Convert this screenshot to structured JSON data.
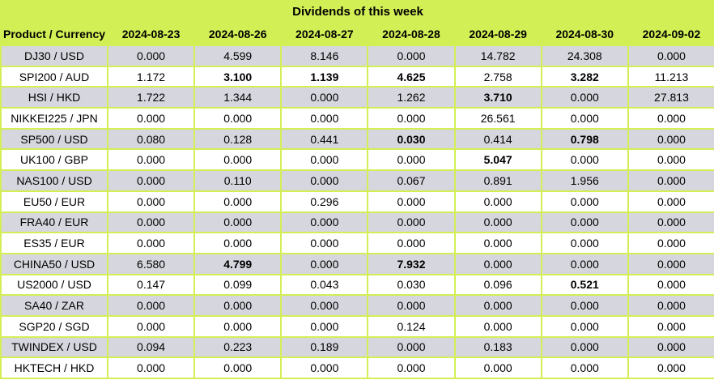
{
  "title": "Dividends of this week",
  "colors": {
    "green": "#d2ef55",
    "alt_row": "#d6d6de",
    "white_row": "#ffffff",
    "text": "#000000"
  },
  "table": {
    "product_header": "Product / Currency",
    "date_headers": [
      "2024-08-23",
      "2024-08-26",
      "2024-08-27",
      "2024-08-28",
      "2024-08-29",
      "2024-08-30",
      "2024-09-02"
    ],
    "rows": [
      {
        "product": "DJ30 / USD",
        "values": [
          "0.000",
          "4.599",
          "8.146",
          "0.000",
          "14.782",
          "24.308",
          "0.000"
        ],
        "bold": [
          false,
          false,
          false,
          false,
          false,
          false,
          false
        ]
      },
      {
        "product": "SPI200 / AUD",
        "values": [
          "1.172",
          "3.100",
          "1.139",
          "4.625",
          "2.758",
          "3.282",
          "11.213"
        ],
        "bold": [
          false,
          true,
          true,
          true,
          false,
          true,
          false
        ]
      },
      {
        "product": "HSI / HKD",
        "values": [
          "1.722",
          "1.344",
          "0.000",
          "1.262",
          "3.710",
          "0.000",
          "27.813"
        ],
        "bold": [
          false,
          false,
          false,
          false,
          true,
          false,
          false
        ]
      },
      {
        "product": "NIKKEI225 / JPN",
        "values": [
          "0.000",
          "0.000",
          "0.000",
          "0.000",
          "26.561",
          "0.000",
          "0.000"
        ],
        "bold": [
          false,
          false,
          false,
          false,
          false,
          false,
          false
        ]
      },
      {
        "product": "SP500 / USD",
        "values": [
          "0.080",
          "0.128",
          "0.441",
          "0.030",
          "0.414",
          "0.798",
          "0.000"
        ],
        "bold": [
          false,
          false,
          false,
          true,
          false,
          true,
          false
        ]
      },
      {
        "product": "UK100 / GBP",
        "values": [
          "0.000",
          "0.000",
          "0.000",
          "0.000",
          "5.047",
          "0.000",
          "0.000"
        ],
        "bold": [
          false,
          false,
          false,
          false,
          true,
          false,
          false
        ]
      },
      {
        "product": "NAS100 / USD",
        "values": [
          "0.000",
          "0.110",
          "0.000",
          "0.067",
          "0.891",
          "1.956",
          "0.000"
        ],
        "bold": [
          false,
          false,
          false,
          false,
          false,
          false,
          false
        ]
      },
      {
        "product": "EU50 / EUR",
        "values": [
          "0.000",
          "0.000",
          "0.296",
          "0.000",
          "0.000",
          "0.000",
          "0.000"
        ],
        "bold": [
          false,
          false,
          false,
          false,
          false,
          false,
          false
        ]
      },
      {
        "product": "FRA40 / EUR",
        "values": [
          "0.000",
          "0.000",
          "0.000",
          "0.000",
          "0.000",
          "0.000",
          "0.000"
        ],
        "bold": [
          false,
          false,
          false,
          false,
          false,
          false,
          false
        ]
      },
      {
        "product": "ES35 / EUR",
        "values": [
          "0.000",
          "0.000",
          "0.000",
          "0.000",
          "0.000",
          "0.000",
          "0.000"
        ],
        "bold": [
          false,
          false,
          false,
          false,
          false,
          false,
          false
        ]
      },
      {
        "product": "CHINA50 / USD",
        "values": [
          "6.580",
          "4.799",
          "0.000",
          "7.932",
          "0.000",
          "0.000",
          "0.000"
        ],
        "bold": [
          false,
          true,
          false,
          true,
          false,
          false,
          false
        ]
      },
      {
        "product": "US2000 / USD",
        "values": [
          "0.147",
          "0.099",
          "0.043",
          "0.030",
          "0.096",
          "0.521",
          "0.000"
        ],
        "bold": [
          false,
          false,
          false,
          false,
          false,
          true,
          false
        ]
      },
      {
        "product": "SA40 / ZAR",
        "values": [
          "0.000",
          "0.000",
          "0.000",
          "0.000",
          "0.000",
          "0.000",
          "0.000"
        ],
        "bold": [
          false,
          false,
          false,
          false,
          false,
          false,
          false
        ]
      },
      {
        "product": "SGP20 / SGD",
        "values": [
          "0.000",
          "0.000",
          "0.000",
          "0.124",
          "0.000",
          "0.000",
          "0.000"
        ],
        "bold": [
          false,
          false,
          false,
          false,
          false,
          false,
          false
        ]
      },
      {
        "product": "TWINDEX / USD",
        "values": [
          "0.094",
          "0.223",
          "0.189",
          "0.000",
          "0.183",
          "0.000",
          "0.000"
        ],
        "bold": [
          false,
          false,
          false,
          false,
          false,
          false,
          false
        ]
      },
      {
        "product": "HKTECH / HKD",
        "values": [
          "0.000",
          "0.000",
          "0.000",
          "0.000",
          "0.000",
          "0.000",
          "0.000"
        ],
        "bold": [
          false,
          false,
          false,
          false,
          false,
          false,
          false
        ]
      }
    ]
  },
  "chart_data": {
    "type": "table",
    "title": "Dividends of this week",
    "columns": [
      "Product / Currency",
      "2024-08-23",
      "2024-08-26",
      "2024-08-27",
      "2024-08-28",
      "2024-08-29",
      "2024-08-30",
      "2024-09-02"
    ],
    "rows": [
      [
        "DJ30 / USD",
        0.0,
        4.599,
        8.146,
        0.0,
        14.782,
        24.308,
        0.0
      ],
      [
        "SPI200 / AUD",
        1.172,
        3.1,
        1.139,
        4.625,
        2.758,
        3.282,
        11.213
      ],
      [
        "HSI / HKD",
        1.722,
        1.344,
        0.0,
        1.262,
        3.71,
        0.0,
        27.813
      ],
      [
        "NIKKEI225 / JPN",
        0.0,
        0.0,
        0.0,
        0.0,
        26.561,
        0.0,
        0.0
      ],
      [
        "SP500 / USD",
        0.08,
        0.128,
        0.441,
        0.03,
        0.414,
        0.798,
        0.0
      ],
      [
        "UK100 / GBP",
        0.0,
        0.0,
        0.0,
        0.0,
        5.047,
        0.0,
        0.0
      ],
      [
        "NAS100 / USD",
        0.0,
        0.11,
        0.0,
        0.067,
        0.891,
        1.956,
        0.0
      ],
      [
        "EU50 / EUR",
        0.0,
        0.0,
        0.296,
        0.0,
        0.0,
        0.0,
        0.0
      ],
      [
        "FRA40 / EUR",
        0.0,
        0.0,
        0.0,
        0.0,
        0.0,
        0.0,
        0.0
      ],
      [
        "ES35 / EUR",
        0.0,
        0.0,
        0.0,
        0.0,
        0.0,
        0.0,
        0.0
      ],
      [
        "CHINA50 / USD",
        6.58,
        4.799,
        0.0,
        7.932,
        0.0,
        0.0,
        0.0
      ],
      [
        "US2000 / USD",
        0.147,
        0.099,
        0.043,
        0.03,
        0.096,
        0.521,
        0.0
      ],
      [
        "SA40 / ZAR",
        0.0,
        0.0,
        0.0,
        0.0,
        0.0,
        0.0,
        0.0
      ],
      [
        "SGP20 / SGD",
        0.0,
        0.0,
        0.0,
        0.124,
        0.0,
        0.0,
        0.0
      ],
      [
        "TWINDEX / USD",
        0.094,
        0.223,
        0.189,
        0.0,
        0.183,
        0.0,
        0.0
      ],
      [
        "HKTECH / HKD",
        0.0,
        0.0,
        0.0,
        0.0,
        0.0,
        0.0,
        0.0
      ]
    ],
    "bold_cells_note": "bold flags per data row are stored in table.rows[].bold",
    "layout": {
      "header_fill": "#d2ef55",
      "alt_row_fill": "#d6d6de",
      "grid": true
    }
  }
}
